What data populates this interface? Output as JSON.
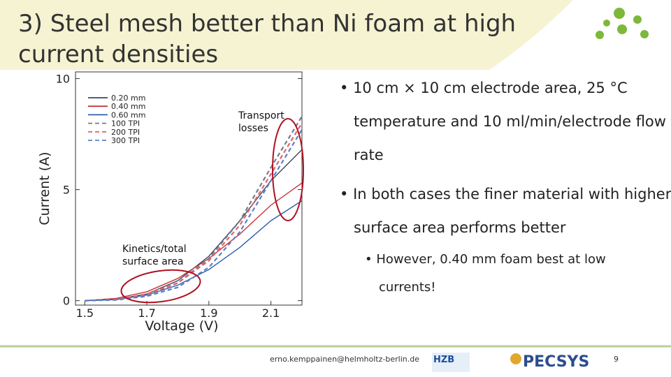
{
  "slide": {
    "title": "3) Steel mesh better than Ni foam at high current densities",
    "bullets": [
      {
        "text": "10 cm × 10 cm electrode area, 25 °C temperature and 10 ml/min/electrode flow rate"
      },
      {
        "text": "In both cases the finer material with higher surface area performs better",
        "sub": [
          "However, 0.40 mm foam best at low currents!"
        ]
      }
    ],
    "footer": {
      "email": "erno.kemppainen@helmholtz-berlin.de",
      "logo1": "HZB",
      "logo2": "PECSYS",
      "page": "9"
    }
  },
  "chart_data": {
    "type": "line",
    "xlabel": "Voltage (V)",
    "ylabel": "Current (A)",
    "annotations": [
      "Transport losses",
      "Kinetics/total surface area"
    ],
    "x": [
      1.5,
      1.6,
      1.7,
      1.8,
      1.9,
      2.0,
      2.1,
      2.2
    ],
    "xlim": [
      1.47,
      2.2
    ],
    "xticks": [
      1.5,
      1.7,
      1.9,
      2.1
    ],
    "ylim": [
      -0.2,
      10.3
    ],
    "yticks": [
      0,
      5,
      10
    ],
    "legend": "upper left",
    "series": [
      {
        "name": "0.20 mm",
        "color": "#3b4660",
        "style": "solid",
        "values": [
          0,
          0.05,
          0.3,
          0.9,
          2.0,
          3.6,
          5.4,
          6.8
        ]
      },
      {
        "name": "0.40 mm",
        "color": "#c8333a",
        "style": "solid",
        "values": [
          0,
          0.1,
          0.4,
          1.0,
          1.9,
          3.0,
          4.3,
          5.3
        ]
      },
      {
        "name": "0.60 mm",
        "color": "#2f5fae",
        "style": "solid",
        "values": [
          0,
          0.05,
          0.25,
          0.7,
          1.4,
          2.4,
          3.6,
          4.5
        ]
      },
      {
        "name": "100 TPI",
        "color": "#767a90",
        "style": "dashed",
        "values": [
          0,
          0.05,
          0.25,
          0.8,
          1.9,
          3.6,
          6.0,
          8.3
        ]
      },
      {
        "name": "200 TPI",
        "color": "#e0646a",
        "style": "dashed",
        "values": [
          0,
          0.05,
          0.3,
          0.8,
          1.8,
          3.4,
          5.7,
          8.0
        ]
      },
      {
        "name": "300 TPI",
        "color": "#5b80c4",
        "style": "dashed",
        "values": [
          0,
          0.03,
          0.2,
          0.6,
          1.5,
          3.1,
          5.4,
          7.7
        ]
      }
    ]
  }
}
